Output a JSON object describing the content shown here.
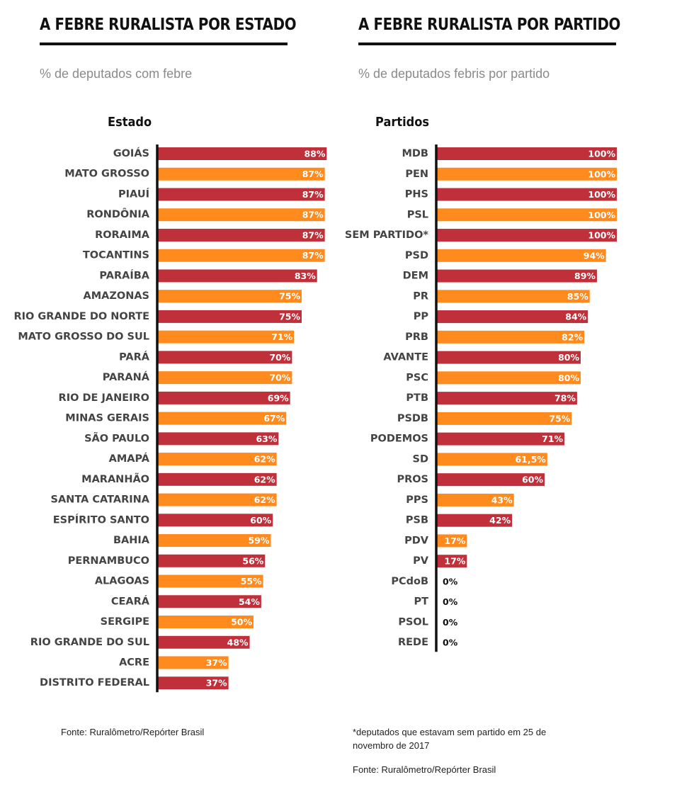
{
  "colors": {
    "red": "#c0303b",
    "orange": "#ff8a1e",
    "axis": "#111111"
  },
  "chart_data": [
    {
      "type": "bar",
      "orientation": "horizontal",
      "title": "A FEBRE RURALISTA POR ESTADO",
      "subtitle": "% de deputados com febre",
      "category_axis_title": "Estado",
      "xlim": [
        0,
        100
      ],
      "categories": [
        "GOIÁS",
        "MATO GROSSO",
        "PIAUÍ",
        "RONDÔNIA",
        "RORAIMA",
        "TOCANTINS",
        "PARAÍBA",
        "AMAZONAS",
        "RIO GRANDE DO NORTE",
        "MATO GROSSO DO SUL",
        "PARÁ",
        "PARANÁ",
        "RIO DE JANEIRO",
        "MINAS GERAIS",
        "SÃO PAULO",
        "AMAPÁ",
        "MARANHÃO",
        "SANTA CATARINA",
        "ESPÍRITO SANTO",
        "BAHIA",
        "PERNAMBUCO",
        "ALAGOAS",
        "CEARÁ",
        "SERGIPE",
        "RIO GRANDE DO SUL",
        "ACRE",
        "DISTRITO FEDERAL"
      ],
      "values": [
        88,
        87,
        87,
        87,
        87,
        87,
        83,
        75,
        75,
        71,
        70,
        70,
        69,
        67,
        63,
        62,
        62,
        62,
        60,
        59,
        56,
        55,
        54,
        50,
        48,
        37,
        37
      ],
      "value_labels": [
        "88%",
        "87%",
        "87%",
        "87%",
        "87%",
        "87%",
        "83%",
        "75%",
        "75%",
        "71%",
        "70%",
        "70%",
        "69%",
        "67%",
        "63%",
        "62%",
        "62%",
        "62%",
        "60%",
        "59%",
        "56%",
        "55%",
        "54%",
        "50%",
        "48%",
        "37%",
        "37%"
      ],
      "bar_colors": [
        "red",
        "orange",
        "red",
        "orange",
        "red",
        "orange",
        "red",
        "orange",
        "red",
        "orange",
        "red",
        "orange",
        "red",
        "orange",
        "red",
        "orange",
        "red",
        "orange",
        "red",
        "orange",
        "red",
        "orange",
        "red",
        "orange",
        "red",
        "orange",
        "red"
      ],
      "source": "Fonte: Ruralômetro/Repórter Brasil"
    },
    {
      "type": "bar",
      "orientation": "horizontal",
      "title": "A FEBRE RURALISTA POR PARTIDO",
      "subtitle": "% de deputados febris por partido",
      "category_axis_title": "Partidos",
      "xlim": [
        0,
        100
      ],
      "categories": [
        "MDB",
        "PEN",
        "PHS",
        "PSL",
        "SEM PARTIDO*",
        "PSD",
        "DEM",
        "PR",
        "PP",
        "PRB",
        "AVANTE",
        "PSC",
        "PTB",
        "PSDB",
        "PODEMOS",
        "SD",
        "PROS",
        "PPS",
        "PSB",
        "PDV",
        "PV",
        "PCdoB",
        "PT",
        "PSOL",
        "REDE"
      ],
      "values": [
        100,
        100,
        100,
        100,
        100,
        94,
        89,
        85,
        84,
        82,
        80,
        80,
        78,
        75,
        71,
        61.5,
        60,
        43,
        42,
        17,
        17,
        0,
        0,
        0,
        0
      ],
      "value_labels": [
        "100%",
        "100%",
        "100%",
        "100%",
        "100%",
        "94%",
        "89%",
        "85%",
        "84%",
        "82%",
        "80%",
        "80%",
        "78%",
        "75%",
        "71%",
        "61,5%",
        "60%",
        "43%",
        "42%",
        "17%",
        "17%",
        "0%",
        "0%",
        "0%",
        "0%"
      ],
      "bar_colors": [
        "red",
        "orange",
        "red",
        "orange",
        "red",
        "orange",
        "red",
        "orange",
        "red",
        "orange",
        "red",
        "orange",
        "red",
        "orange",
        "red",
        "orange",
        "red",
        "orange",
        "red",
        "orange",
        "red",
        "orange",
        "red",
        "orange",
        "red"
      ],
      "footnote": "*deputados que estavam sem partido em 25 de novembro de 2017",
      "source": "Fonte: Ruralômetro/Repórter Brasil"
    }
  ]
}
